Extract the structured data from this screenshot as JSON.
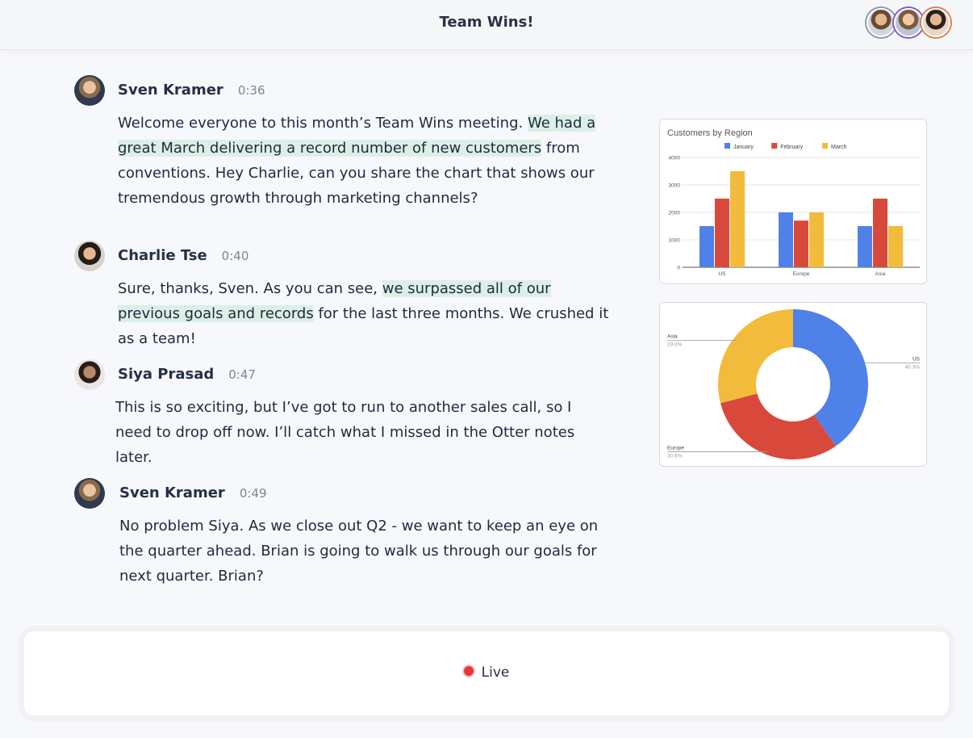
{
  "header": {
    "title": "Team Wins!",
    "participants": [
      "participant-avatar-1",
      "participant-avatar-2",
      "participant-avatar-3"
    ]
  },
  "transcript": [
    {
      "speaker": "Sven Kramer",
      "time": "0:36",
      "segments": [
        {
          "t": "Welcome everyone to this month’s Team Wins meeting. ",
          "hl": false
        },
        {
          "t": "We had a great March delivering a record number of new customers",
          "hl": true
        },
        {
          "t": " from conventions. Hey Charlie, can you share the chart that shows our tremendous growth through marketing channels?",
          "hl": false
        }
      ]
    },
    {
      "speaker": "Charlie Tse",
      "time": "0:40",
      "segments": [
        {
          "t": "Sure, thanks, Sven. As you can see, ",
          "hl": false
        },
        {
          "t": "we surpassed all of our previous goals and records",
          "hl": true
        },
        {
          "t": " for the last three months. We crushed it as a team!",
          "hl": false
        }
      ]
    },
    {
      "speaker": "Siya Prasad",
      "time": "0:47",
      "segments": [
        {
          "t": "This is so exciting, but I’ve got to run to another sales call, so I need to drop off now. I’ll catch what I missed in the Otter notes later.",
          "hl": false
        }
      ]
    },
    {
      "speaker": "Sven Kramer",
      "time": "0:49",
      "segments": [
        {
          "t": "No problem Siya. As we close out Q2 - we want to keep an eye on the quarter ahead. Brian is going to walk us through our goals for next quarter. Brian?",
          "hl": false
        }
      ]
    }
  ],
  "footer": {
    "status": "Live",
    "status_color": "#e53935"
  },
  "chart_data": [
    {
      "type": "bar",
      "title": "Customers by Region",
      "categories": [
        "US",
        "Europe",
        "Asia"
      ],
      "series": [
        {
          "name": "January",
          "values": [
            1500,
            2000,
            1500
          ],
          "color": "#4f81e8"
        },
        {
          "name": "February",
          "values": [
            2500,
            1700,
            2500
          ],
          "color": "#d9493b"
        },
        {
          "name": "March",
          "values": [
            3500,
            2000,
            1500
          ],
          "color": "#f2bb3b"
        }
      ],
      "yticks": [
        0,
        1000,
        2000,
        3000,
        4000
      ],
      "ylim": [
        0,
        4000
      ],
      "grid": true,
      "legend": "top"
    },
    {
      "type": "pie",
      "hole": true,
      "slices": [
        {
          "label": "US",
          "pct": "40.3%",
          "value": 40.3,
          "color": "#4f81e8"
        },
        {
          "label": "Europe",
          "pct": "30.6%",
          "value": 30.6,
          "color": "#d9493b"
        },
        {
          "label": "Asia",
          "pct": "29.0%",
          "value": 29.0,
          "color": "#f2bb3b"
        }
      ]
    }
  ]
}
